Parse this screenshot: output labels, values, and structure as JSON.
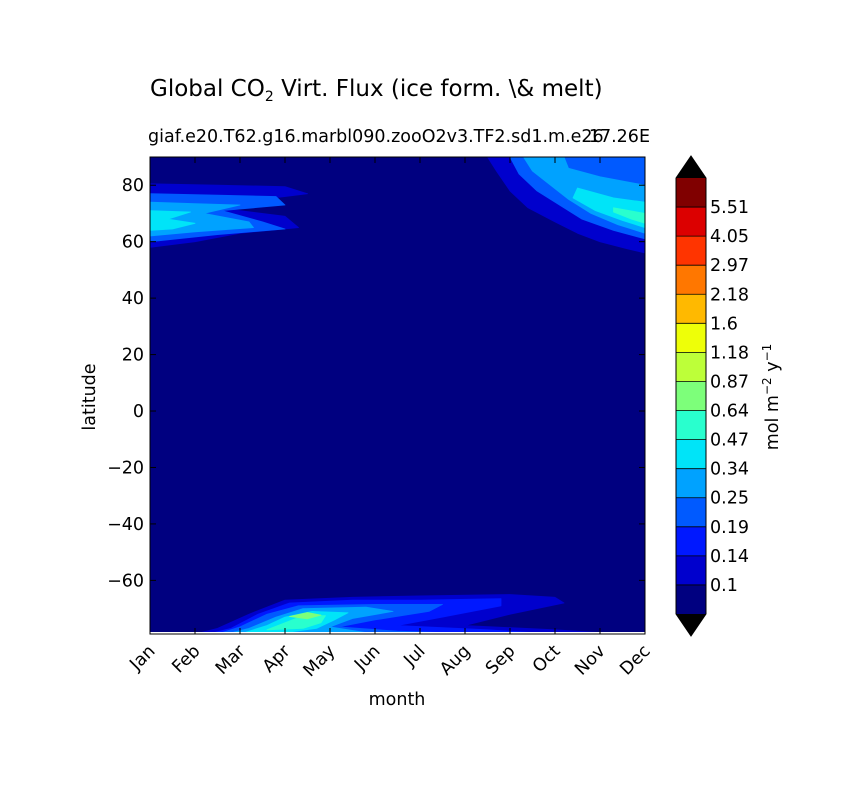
{
  "chart_data": {
    "type": "heatmap",
    "title_main": "Global CO",
    "title_sub": "2",
    "title_rest": " Virt. Flux (ice form. \\& melt)",
    "subtitle": "giaf.e20.T62.g16.marbl090.zooO2v3.TF2.sd1.m.e26",
    "subtitle_right": "17.26E",
    "xlabel": "month",
    "ylabel": "latitude",
    "x_ticks": [
      "Jan",
      "Feb",
      "Mar",
      "Apr",
      "May",
      "Jun",
      "Jul",
      "Aug",
      "Sep",
      "Oct",
      "Nov",
      "Dec"
    ],
    "y_ticks": [
      80,
      60,
      40,
      20,
      0,
      -20,
      -40,
      -60
    ],
    "ylim": [
      -79,
      90
    ],
    "xlim": [
      0,
      11
    ],
    "colorbar": {
      "label": "mol m",
      "label_sup1": "−2",
      "label_mid": " y",
      "label_sup2": "−1",
      "levels": [
        "0.1",
        "0.14",
        "0.19",
        "0.25",
        "0.34",
        "0.47",
        "0.64",
        "0.87",
        "1.18",
        "1.6",
        "2.18",
        "2.97",
        "4.05",
        "5.51"
      ],
      "colors": [
        "#000080",
        "#0000cd",
        "#0018ff",
        "#005aff",
        "#00a2ff",
        "#00e4f8",
        "#29ffce",
        "#7dff7a",
        "#bdff39",
        "#eeff08",
        "#ffb900",
        "#ff7700",
        "#ff3400",
        "#dc0000",
        "#800000"
      ],
      "under_color": "#000000",
      "over_color": "#000000"
    },
    "background_color": "#000080",
    "contours": [
      {
        "level": 1,
        "points": [
          [
            0,
            80.5
          ],
          [
            1.5,
            80
          ],
          [
            3,
            79.5
          ],
          [
            3.5,
            77
          ],
          [
            2.5,
            75
          ],
          [
            1.5,
            72
          ],
          [
            3,
            69
          ],
          [
            3.3,
            65
          ],
          [
            2,
            63
          ],
          [
            1,
            60
          ],
          [
            0,
            58
          ]
        ]
      },
      {
        "level": 3,
        "points": [
          [
            0,
            77
          ],
          [
            1.5,
            76.5
          ],
          [
            2.8,
            76
          ],
          [
            3,
            73
          ],
          [
            1.6,
            71
          ],
          [
            2.5,
            67
          ],
          [
            3,
            64.5
          ],
          [
            1.5,
            62.5
          ],
          [
            0,
            60
          ]
        ]
      },
      {
        "level": 4,
        "points": [
          [
            0,
            74
          ],
          [
            1,
            73.5
          ],
          [
            2,
            73
          ],
          [
            1.2,
            70
          ],
          [
            2.2,
            67
          ],
          [
            2.3,
            65
          ],
          [
            1,
            63.5
          ],
          [
            0,
            62
          ]
        ]
      },
      {
        "level": 5,
        "points": [
          [
            0,
            71
          ],
          [
            0.9,
            70.5
          ],
          [
            0.4,
            68
          ],
          [
            1,
            66.5
          ],
          [
            0.5,
            64.5
          ],
          [
            0,
            64
          ]
        ]
      },
      {
        "level": 1,
        "points": [
          [
            7.5,
            90
          ],
          [
            11,
            90
          ],
          [
            11,
            56
          ],
          [
            10.6,
            57.5
          ],
          [
            10,
            60
          ],
          [
            9.5,
            63
          ],
          [
            9,
            67
          ],
          [
            8.4,
            72
          ],
          [
            8,
            78
          ],
          [
            7.7,
            85
          ]
        ]
      },
      {
        "level": 3,
        "points": [
          [
            8,
            90
          ],
          [
            11,
            90
          ],
          [
            11,
            61
          ],
          [
            10.3,
            64
          ],
          [
            9.6,
            68
          ],
          [
            9.1,
            73
          ],
          [
            8.6,
            78
          ],
          [
            8.2,
            84
          ]
        ]
      },
      {
        "level": 4,
        "points": [
          [
            8.3,
            90
          ],
          [
            9.2,
            90
          ],
          [
            9.3,
            86
          ],
          [
            10,
            83
          ],
          [
            11,
            80
          ],
          [
            11,
            63
          ],
          [
            10.4,
            66
          ],
          [
            9.8,
            70
          ],
          [
            9.3,
            75
          ],
          [
            8.9,
            80
          ],
          [
            8.5,
            85
          ]
        ]
      },
      {
        "level": 5,
        "points": [
          [
            9.5,
            79
          ],
          [
            10.3,
            75.5
          ],
          [
            11,
            74
          ],
          [
            11,
            65
          ],
          [
            10.5,
            67.5
          ],
          [
            9.9,
            71
          ],
          [
            9.4,
            75.5
          ]
        ]
      },
      {
        "level": 6,
        "points": [
          [
            10.3,
            72
          ],
          [
            11,
            70
          ],
          [
            11,
            66.5
          ],
          [
            10.7,
            68
          ],
          [
            10.3,
            70.5
          ]
        ]
      },
      {
        "level": 1,
        "points": [
          [
            1,
            -79
          ],
          [
            1.5,
            -77
          ],
          [
            2.2,
            -72
          ],
          [
            3,
            -67
          ],
          [
            4.5,
            -66
          ],
          [
            6,
            -65.5
          ],
          [
            8,
            -65
          ],
          [
            9,
            -66
          ],
          [
            9.2,
            -68
          ],
          [
            8,
            -72
          ],
          [
            7,
            -76
          ],
          [
            9,
            -77.5
          ],
          [
            10.5,
            -79
          ]
        ]
      },
      {
        "level": 2,
        "points": [
          [
            1.3,
            -79
          ],
          [
            1.8,
            -77
          ],
          [
            2.4,
            -72
          ],
          [
            3.1,
            -68
          ],
          [
            4.5,
            -67
          ],
          [
            6,
            -67
          ],
          [
            7.8,
            -66.5
          ],
          [
            7.8,
            -69
          ],
          [
            6.5,
            -73
          ],
          [
            5.5,
            -76
          ],
          [
            7.5,
            -77.5
          ],
          [
            9,
            -79
          ]
        ]
      },
      {
        "level": 3,
        "points": [
          [
            1.5,
            -79
          ],
          [
            2,
            -76.5
          ],
          [
            2.6,
            -72
          ],
          [
            3.3,
            -69
          ],
          [
            5,
            -68.5
          ],
          [
            6.5,
            -68.5
          ],
          [
            6.2,
            -71
          ],
          [
            5,
            -74
          ],
          [
            4.2,
            -76.5
          ],
          [
            5.5,
            -78
          ],
          [
            7.5,
            -79
          ]
        ]
      },
      {
        "level": 4,
        "points": [
          [
            1.7,
            -79
          ],
          [
            2.2,
            -77
          ],
          [
            2.8,
            -73
          ],
          [
            3.4,
            -70
          ],
          [
            4.8,
            -69.5
          ],
          [
            5.4,
            -71
          ],
          [
            4.5,
            -73.5
          ],
          [
            4,
            -76.5
          ],
          [
            5,
            -79
          ]
        ]
      },
      {
        "level": 5,
        "points": [
          [
            2.1,
            -78.5
          ],
          [
            2.6,
            -76
          ],
          [
            3,
            -73
          ],
          [
            3.6,
            -71
          ],
          [
            4.4,
            -71.5
          ],
          [
            4.1,
            -74
          ],
          [
            3.7,
            -77
          ],
          [
            3,
            -78.5
          ]
        ]
      },
      {
        "level": 6,
        "points": [
          [
            2.6,
            -77.5
          ],
          [
            3,
            -75
          ],
          [
            3.4,
            -72.5
          ],
          [
            3.9,
            -72.5
          ],
          [
            3.8,
            -75
          ],
          [
            3.4,
            -77
          ]
        ]
      },
      {
        "level": 7,
        "points": [
          [
            3.1,
            -72.8
          ],
          [
            3.5,
            -71.4
          ],
          [
            3.8,
            -72.3
          ],
          [
            3.5,
            -73.6
          ]
        ]
      }
    ]
  }
}
